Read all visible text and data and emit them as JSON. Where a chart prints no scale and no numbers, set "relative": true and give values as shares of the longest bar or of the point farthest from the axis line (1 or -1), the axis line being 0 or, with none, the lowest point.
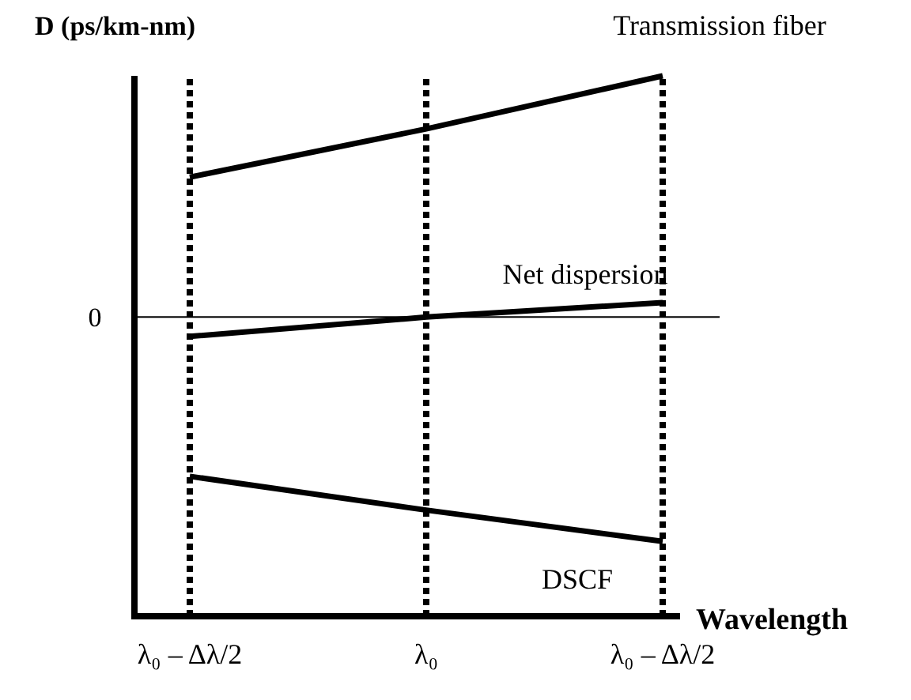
{
  "chart_data": {
    "type": "line",
    "relative": true,
    "xlabel": "Wavelength",
    "ylabel": "D (ps/km-nm)",
    "categories": [
      "λ₀ – Δλ/2",
      "λ₀",
      "λ₀ – Δλ/2"
    ],
    "series": [
      {
        "name": "Transmission fiber",
        "color": "#000000",
        "values": [
          0.58,
          0.78,
          1
        ]
      },
      {
        "name": "Net dispersion",
        "color": "#000000",
        "values": [
          -0.08,
          0,
          0.06
        ]
      },
      {
        "name": "DSCF",
        "color": "#000000",
        "values": [
          -0.66,
          -0.8,
          -0.93
        ]
      }
    ],
    "ref_lines": [
      {
        "axis": "y",
        "value": 0,
        "label": "0",
        "color": "#000000"
      }
    ],
    "grid": "x",
    "line_style": "solid",
    "marker": "none"
  }
}
